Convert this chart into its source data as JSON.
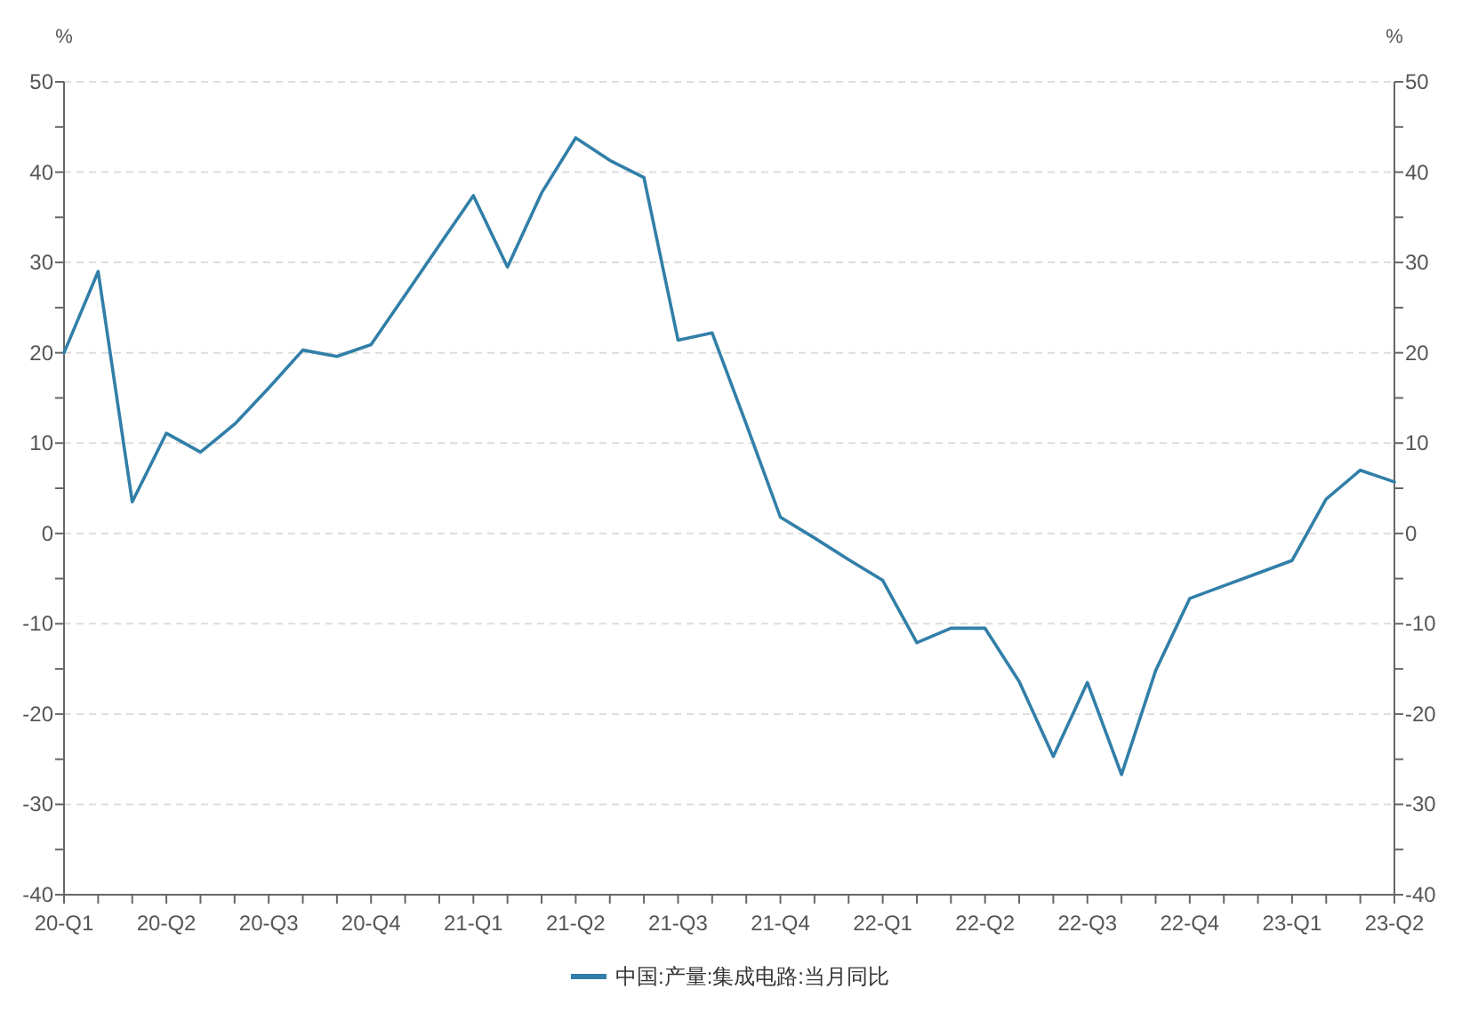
{
  "chart_data": {
    "type": "line",
    "ylabel": "%",
    "y2label": "%",
    "categories": [
      "20-Q1",
      null,
      null,
      "20-Q2",
      null,
      null,
      "20-Q3",
      null,
      null,
      "20-Q4",
      null,
      null,
      "21-Q1",
      null,
      null,
      "21-Q2",
      null,
      null,
      "21-Q3",
      null,
      null,
      "21-Q4",
      null,
      null,
      "22-Q1",
      null,
      null,
      "22-Q2",
      null,
      null,
      "22-Q3",
      null,
      null,
      "22-Q4",
      null,
      null,
      "23-Q1",
      null,
      null,
      "23-Q2"
    ],
    "series": [
      {
        "name": "中国:产量:集成电路:当月同比",
        "color": "#317fa8",
        "values": [
          20,
          29,
          3.5,
          11.1,
          9,
          12.1,
          16.1,
          20.3,
          19.6,
          20.9,
          26.4,
          31.9,
          37.4,
          29.5,
          37.7,
          43.8,
          41.3,
          39.4,
          21.4,
          22.2,
          12.1,
          1.8,
          -0.5,
          -2.9,
          -5.2,
          -12.1,
          -10.5,
          -10.5,
          -16.4,
          -24.7,
          -16.5,
          -26.7,
          -15.2,
          -7.2,
          -5.8,
          -4.4,
          -3.0,
          3.8,
          7.0,
          5.7
        ]
      }
    ],
    "ylim": [
      -40,
      50
    ],
    "yticks": [
      -40,
      {
        "value": -35,
        "label": null
      },
      -30,
      {
        "value": -25,
        "label": null
      },
      -20,
      {
        "value": -15,
        "label": null
      },
      -10,
      {
        "value": -5,
        "label": null
      },
      0,
      {
        "value": 5,
        "label": null
      },
      10,
      {
        "value": 15,
        "label": null
      },
      20,
      {
        "value": 25,
        "label": null
      },
      30,
      {
        "value": 35,
        "label": null
      },
      40,
      {
        "value": 45,
        "label": null
      },
      50
    ],
    "y2lim": [
      -40,
      50
    ],
    "y2ticks": [
      -40,
      {
        "value": -35,
        "label": null
      },
      -30,
      {
        "value": -25,
        "label": null
      },
      -20,
      {
        "value": -15,
        "label": null
      },
      -10,
      {
        "value": -5,
        "label": null
      },
      0,
      {
        "value": 5,
        "label": null
      },
      10,
      {
        "value": 15,
        "label": null
      },
      20,
      {
        "value": 25,
        "label": null
      },
      30,
      {
        "value": 35,
        "label": null
      },
      40,
      {
        "value": 45,
        "label": null
      },
      50
    ],
    "grid": "y",
    "legend": "bottom",
    "line_style": "solid"
  }
}
